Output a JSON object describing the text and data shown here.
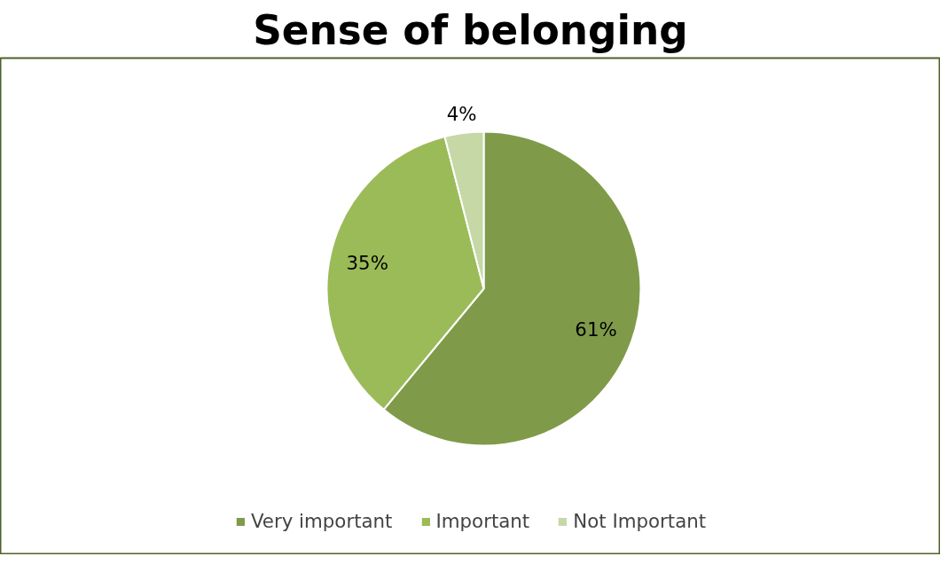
{
  "chart_data": {
    "type": "pie",
    "title": "Sense of belonging",
    "categories": [
      "Very important",
      "Important",
      "Not Important"
    ],
    "values": [
      61,
      35,
      4
    ],
    "colors": [
      "#7f9b4a",
      "#9bbb59",
      "#c5d8a6"
    ],
    "value_labels": [
      "61%",
      "35%",
      "4%"
    ],
    "legend": "bottom"
  }
}
